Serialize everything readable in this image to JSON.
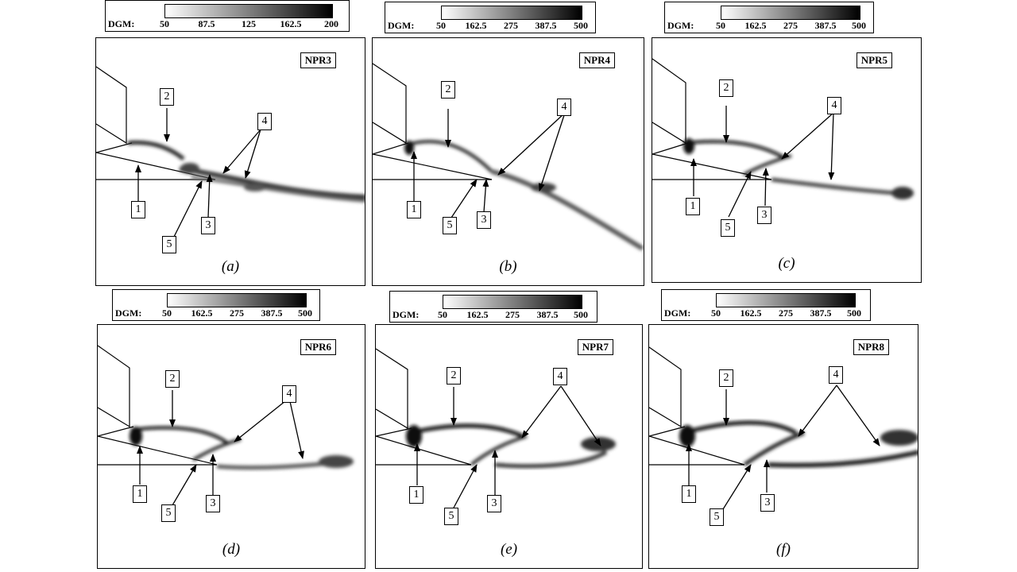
{
  "colorbars": [
    {
      "title": "DGM:",
      "ticks": [
        "50",
        "87.5",
        "125",
        "162.5",
        "200"
      ]
    },
    {
      "title": "DGM:",
      "ticks": [
        "50",
        "162.5",
        "275",
        "387.5",
        "500"
      ]
    },
    {
      "title": "DGM:",
      "ticks": [
        "50",
        "162.5",
        "275",
        "387.5",
        "500"
      ]
    },
    {
      "title": "DGM:",
      "ticks": [
        "50",
        "162.5",
        "275",
        "387.5",
        "500"
      ]
    },
    {
      "title": "DGM:",
      "ticks": [
        "50",
        "162.5",
        "275",
        "387.5",
        "500"
      ]
    },
    {
      "title": "DGM:",
      "ticks": [
        "50",
        "162.5",
        "275",
        "387.5",
        "500"
      ]
    }
  ],
  "panels": [
    {
      "tag": "NPR3",
      "caption": "(a)",
      "labels": [
        "1",
        "2",
        "3",
        "4",
        "5"
      ]
    },
    {
      "tag": "NPR4",
      "caption": "(b)",
      "labels": [
        "1",
        "2",
        "3",
        "4",
        "5"
      ]
    },
    {
      "tag": "NPR5",
      "caption": "(c)",
      "labels": [
        "1",
        "2",
        "3",
        "4",
        "5"
      ]
    },
    {
      "tag": "NPR6",
      "caption": "(d)",
      "labels": [
        "1",
        "2",
        "3",
        "4",
        "5"
      ]
    },
    {
      "tag": "NPR7",
      "caption": "(e)",
      "labels": [
        "1",
        "2",
        "3",
        "4",
        "5"
      ]
    },
    {
      "tag": "NPR8",
      "caption": "(f)",
      "labels": [
        "1",
        "2",
        "3",
        "4",
        "5"
      ]
    }
  ]
}
